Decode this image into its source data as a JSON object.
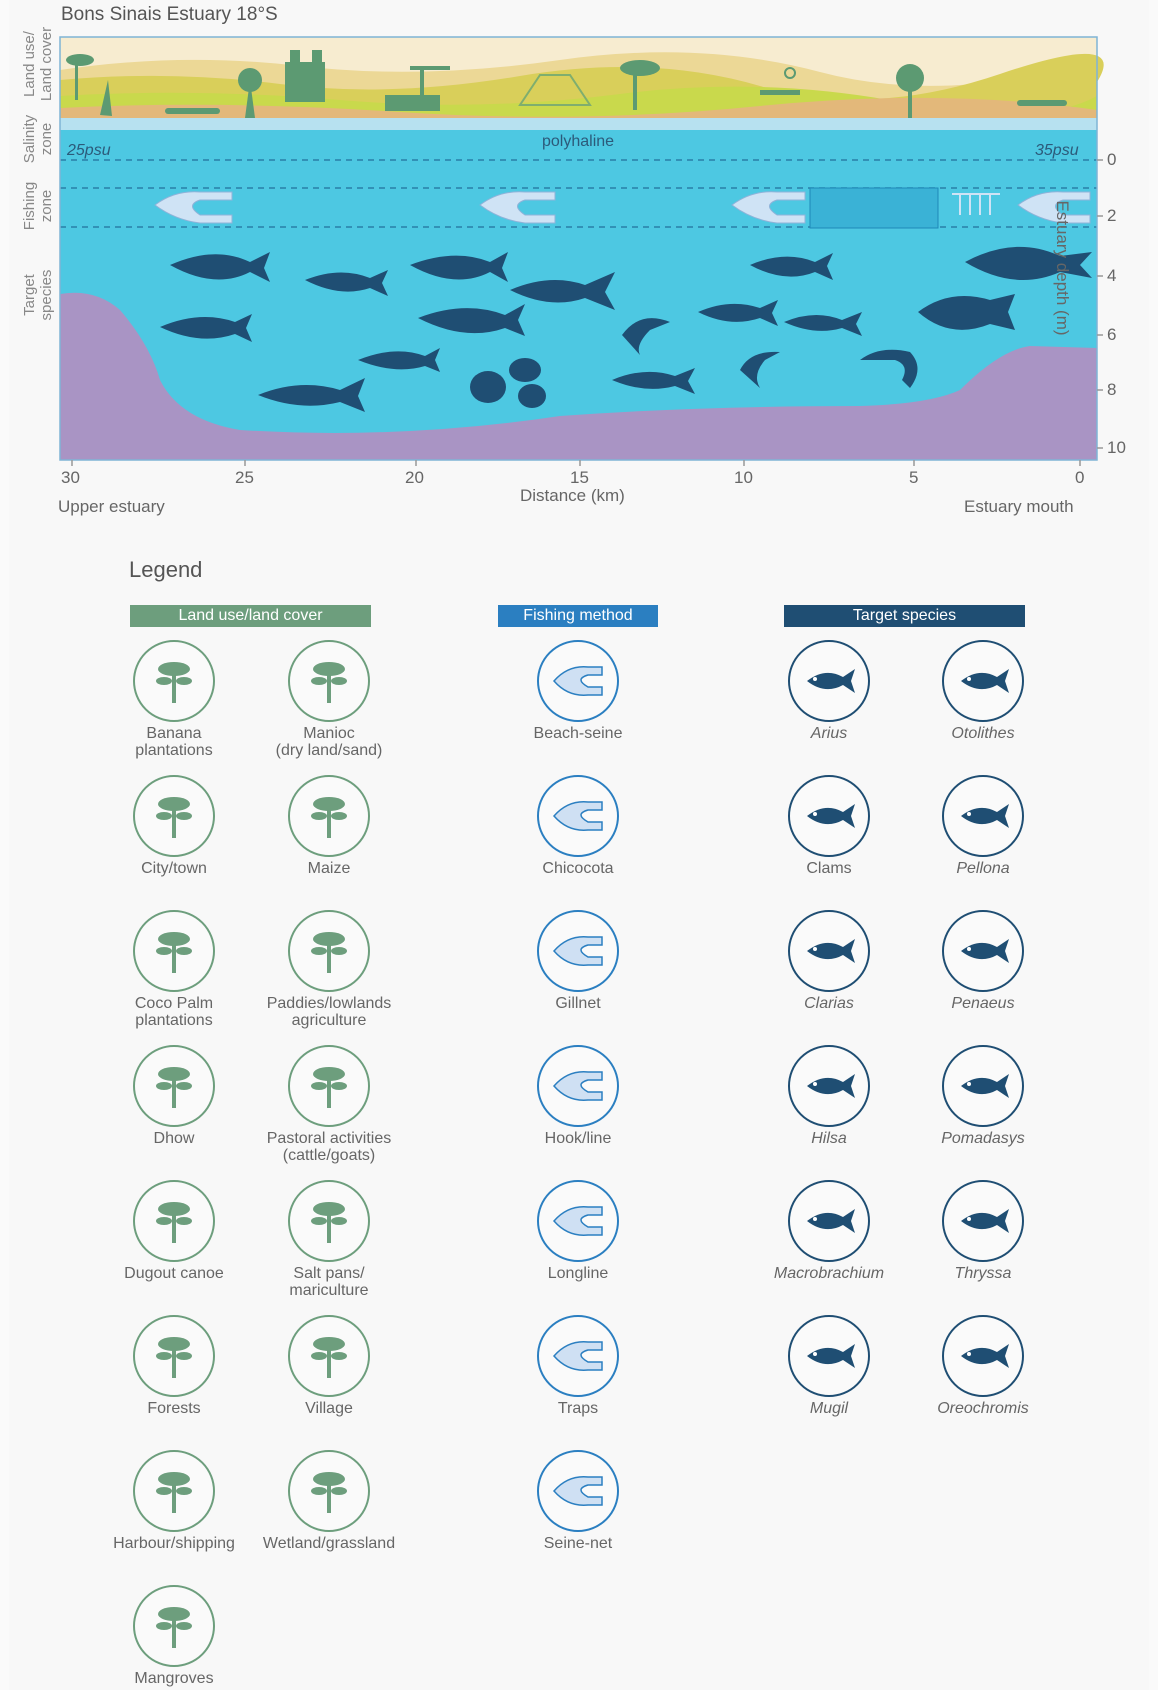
{
  "title": "Bons Sinais Estuary 18°S",
  "row_labels": {
    "land": "Land use/\nLand cover",
    "salinity": "Salinity\nzone",
    "fishing": "Fishing\nzone",
    "target": "Target\nspecies"
  },
  "salinity": {
    "left": "25psu",
    "middle": "polyhaline",
    "right": "35psu"
  },
  "x_axis": {
    "label": "Distance (km)",
    "ticks": [
      "30",
      "25",
      "20",
      "15",
      "10",
      "5",
      "0"
    ],
    "left_caption": "Upper estuary",
    "right_caption": "Estuary mouth"
  },
  "y_axis": {
    "label": "Estuary depth (m)",
    "ticks": [
      "0",
      "2",
      "4",
      "6",
      "8",
      "10"
    ]
  },
  "legend": {
    "title": "Legend",
    "land_header": "Land use/land cover",
    "fish_header": "Fishing method",
    "species_header": "Target species",
    "land_items": [
      {
        "label": "Banana\nplantations",
        "icon": "banana-icon"
      },
      {
        "label": "Manioc\n(dry land/sand)",
        "icon": "manioc-icon"
      },
      {
        "label": "City/town",
        "icon": "city-icon"
      },
      {
        "label": "Maize",
        "icon": "maize-icon"
      },
      {
        "label": "Coco Palm\nplantations",
        "icon": "palm-icon"
      },
      {
        "label": "Paddies/lowlands\nagriculture",
        "icon": "paddies-icon"
      },
      {
        "label": "Dhow",
        "icon": "dhow-icon"
      },
      {
        "label": "Pastoral activities\n(cattle/goats)",
        "icon": "cattle-icon"
      },
      {
        "label": "Dugout canoe",
        "icon": "canoe-icon"
      },
      {
        "label": "Salt pans/\nmariculture",
        "icon": "saltpan-icon"
      },
      {
        "label": "Forests",
        "icon": "forest-icon"
      },
      {
        "label": "Village",
        "icon": "village-icon"
      },
      {
        "label": "Harbour/shipping",
        "icon": "harbour-icon"
      },
      {
        "label": "Wetland/grassland",
        "icon": "heron-icon"
      },
      {
        "label": "Mangroves",
        "icon": "mangrove-icon"
      }
    ],
    "fish_items": [
      {
        "label": "Beach-seine",
        "icon": "beach-seine-icon"
      },
      {
        "label": "Chicocota",
        "icon": "chicocota-icon"
      },
      {
        "label": "Gillnet",
        "icon": "gillnet-icon"
      },
      {
        "label": "Hook/line",
        "icon": "hook-icon"
      },
      {
        "label": "Longline",
        "icon": "longline-icon"
      },
      {
        "label": "Traps",
        "icon": "trap-icon"
      },
      {
        "label": "Seine-net",
        "icon": "seine-net-icon"
      }
    ],
    "species_items": [
      {
        "label": "Arius",
        "icon": "catfish-icon"
      },
      {
        "label": "Otolithes",
        "icon": "fish-icon"
      },
      {
        "label": "Clams",
        "icon": "clam-icon"
      },
      {
        "label": "Pellona",
        "icon": "fish-icon"
      },
      {
        "label": "Clarias",
        "icon": "eel-catfish-icon"
      },
      {
        "label": "Penaeus",
        "icon": "shrimp-icon"
      },
      {
        "label": "Hilsa",
        "icon": "fish-icon"
      },
      {
        "label": "Pomadasys",
        "icon": "grunter-icon"
      },
      {
        "label": "Macrobrachium",
        "icon": "prawn-icon"
      },
      {
        "label": "Thryssa",
        "icon": "fish-icon"
      },
      {
        "label": "Mugil",
        "icon": "mullet-icon"
      },
      {
        "label": "Oreochromis",
        "icon": "tilapia-icon"
      }
    ]
  },
  "colors": {
    "water": "#4dc8e2",
    "sediment": "#a994c4",
    "land_green": "#6d9e7d",
    "fishing_blue": "#2b7fc1",
    "species_navy": "#1f4e73"
  }
}
